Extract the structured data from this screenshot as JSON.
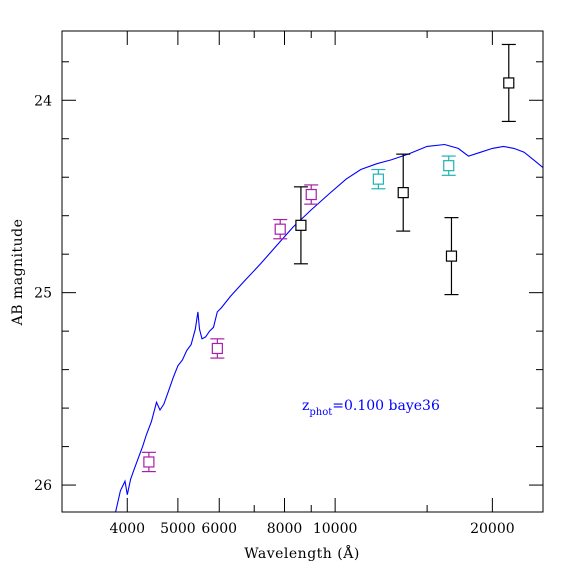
{
  "chart_data": {
    "type": "scatter",
    "xlabel": "Wavelength (Å)",
    "ylabel": "AB magnitude",
    "x_scale": "log",
    "xlim": [
      3000,
      25000
    ],
    "ylim": [
      26.14,
      23.64
    ],
    "y_inverted": true,
    "grid": false,
    "x_ticks": [
      {
        "value": 4000,
        "label": "4000"
      },
      {
        "value": 5000,
        "label": "5000"
      },
      {
        "value": 6000,
        "label": "6000"
      },
      {
        "value": 8000,
        "label": "8000"
      },
      {
        "value": 10000,
        "label": "10000"
      },
      {
        "value": 20000,
        "label": "20000"
      }
    ],
    "x_minor_ticks": [
      3000,
      7000,
      9000,
      15000
    ],
    "y_ticks": [
      {
        "value": 24,
        "label": "24"
      },
      {
        "value": 25,
        "label": "25"
      },
      {
        "value": 26,
        "label": "26"
      }
    ],
    "y_minor_step": 0.2,
    "annotation": {
      "main": "z",
      "sub": "phot",
      "rest": "=0.100 baye36",
      "color": "#0000ff"
    },
    "series": [
      {
        "color": "#aa1fa8",
        "marker": "open-square",
        "points": [
          {
            "x": 4400,
            "y": 25.88,
            "err": 0.05
          },
          {
            "x": 5950,
            "y": 25.29,
            "err": 0.05
          },
          {
            "x": 7850,
            "y": 24.67,
            "err": 0.05
          },
          {
            "x": 9000,
            "y": 24.49,
            "err": 0.05
          }
        ]
      },
      {
        "color": "#1fb3b3",
        "marker": "open-square",
        "points": [
          {
            "x": 12100,
            "y": 24.41,
            "err": 0.05
          },
          {
            "x": 16500,
            "y": 24.34,
            "err": 0.05
          }
        ]
      },
      {
        "color": "#000000",
        "marker": "open-square",
        "points": [
          {
            "x": 8600,
            "y": 24.65,
            "err": 0.2
          },
          {
            "x": 13500,
            "y": 24.48,
            "err": 0.2
          },
          {
            "x": 16700,
            "y": 24.81,
            "err": 0.2
          },
          {
            "x": 21500,
            "y": 23.91,
            "err": 0.2
          }
        ]
      }
    ],
    "model": {
      "color": "#0000ff",
      "x": [
        3800,
        3880,
        3960,
        4000,
        4060,
        4120,
        4200,
        4280,
        4350,
        4450,
        4550,
        4620,
        4700,
        4800,
        4900,
        5000,
        5100,
        5200,
        5300,
        5400,
        5460,
        5500,
        5560,
        5650,
        5750,
        5850,
        5950,
        6050,
        6300,
        6700,
        7200,
        7700,
        8300,
        9000,
        9800,
        10500,
        11200,
        12000,
        12800,
        13800,
        15000,
        16200,
        17200,
        18000,
        19000,
        20000,
        21000,
        22000,
        23000,
        24000,
        25000
      ],
      "y": [
        26.14,
        26.03,
        25.98,
        26.05,
        25.97,
        25.92,
        25.86,
        25.8,
        25.74,
        25.67,
        25.57,
        25.61,
        25.58,
        25.51,
        25.44,
        25.38,
        25.35,
        25.3,
        25.27,
        25.19,
        25.1,
        25.19,
        25.24,
        25.23,
        25.2,
        25.18,
        25.1,
        25.08,
        25.02,
        24.94,
        24.85,
        24.76,
        24.66,
        24.57,
        24.48,
        24.41,
        24.36,
        24.33,
        24.31,
        24.28,
        24.24,
        24.23,
        24.25,
        24.29,
        24.27,
        24.25,
        24.24,
        24.25,
        24.27,
        24.31,
        24.35
      ]
    }
  }
}
